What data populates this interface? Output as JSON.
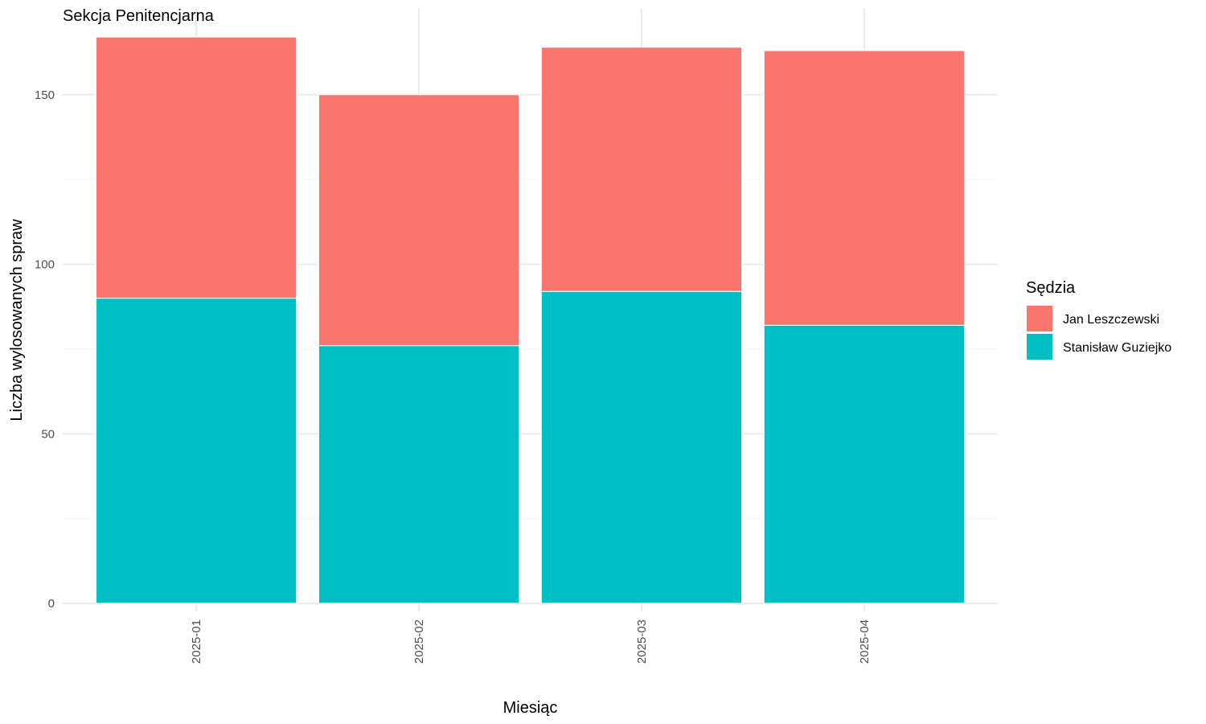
{
  "chart_data": {
    "type": "bar",
    "stacked": true,
    "title": "Sekcja Penitencjarna",
    "xlabel": "Miesiąc",
    "ylabel": "Liczba wylosowanych spraw",
    "categories": [
      "2025-01",
      "2025-02",
      "2025-03",
      "2025-04"
    ],
    "series": [
      {
        "name": "Stanisław Guziejko",
        "color": "#00BFC4",
        "values": [
          90,
          76,
          92,
          82
        ]
      },
      {
        "name": "Jan Leszczewski",
        "color": "#F8766D",
        "values": [
          77,
          74,
          72,
          81
        ]
      }
    ],
    "yticks": [
      0,
      50,
      100,
      150
    ],
    "ylim": [
      0,
      167
    ],
    "grid": true,
    "legend": {
      "title": "Sędzia",
      "position": "right",
      "entries": [
        {
          "name": "Jan Leszczewski",
          "color": "#F8766D"
        },
        {
          "name": "Stanisław Guziejko",
          "color": "#00BFC4"
        }
      ]
    }
  }
}
